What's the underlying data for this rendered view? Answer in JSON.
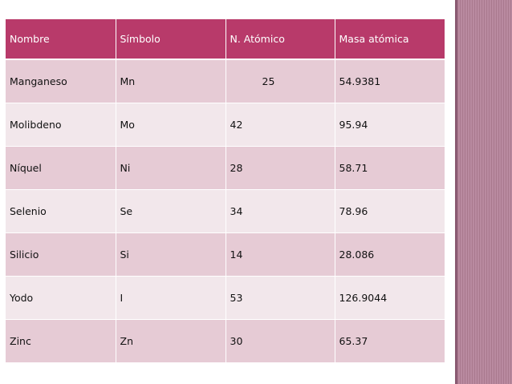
{
  "table": {
    "headers": [
      "Nombre",
      "Símbolo",
      "N. Atómico",
      "Masa atómica"
    ],
    "rows": [
      [
        "Manganeso",
        "Mn",
        "25",
        "54.9381"
      ],
      [
        "Molibdeno",
        "Mo",
        "42",
        "95.94"
      ],
      [
        "Níquel",
        "Ni",
        "28",
        "58.71"
      ],
      [
        "Selenio",
        "Se",
        "34",
        "78.96"
      ],
      [
        "Silicio",
        "Si",
        "14",
        "28.086"
      ],
      [
        "Yodo",
        "I",
        "53",
        "126.9044"
      ],
      [
        "Zinc",
        "Zn",
        "30",
        "65.37"
      ]
    ]
  },
  "colors": {
    "header_bg": "#b83a6a",
    "row_odd_bg": "#e6cbd5",
    "row_even_bg": "#f2e7eb",
    "sidebar": "#b98aa0"
  }
}
